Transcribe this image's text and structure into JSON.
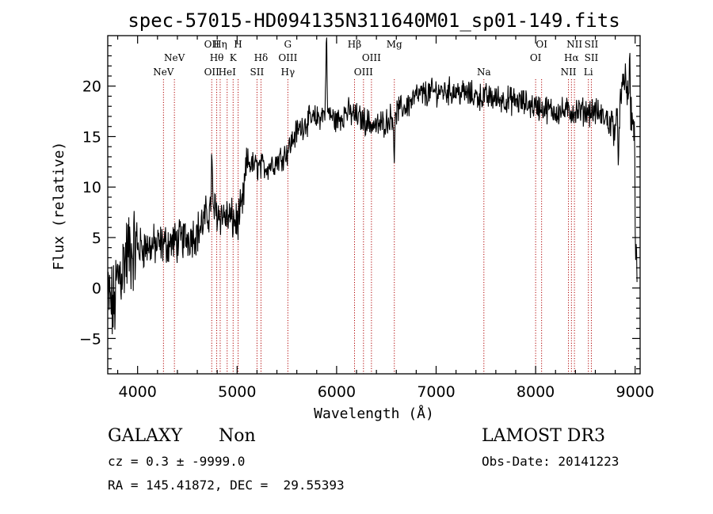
{
  "chart_data": {
    "type": "line",
    "title": "spec-57015-HD094135N311640M01_sp01-149.fits",
    "xlabel": "Wavelength (Å)",
    "ylabel": "Flux (relative)",
    "xlim": [
      3700,
      9050
    ],
    "ylim": [
      -8.5,
      25
    ],
    "xticks": [
      4000,
      5000,
      6000,
      7000,
      8000,
      9000
    ],
    "yticks": [
      -5,
      0,
      5,
      10,
      15,
      20
    ],
    "spectrum_anchors": {
      "x": [
        3700,
        3760,
        3800,
        3900,
        4000,
        4200,
        4400,
        4600,
        4700,
        4750,
        4800,
        4900,
        5000,
        5050,
        5100,
        5200,
        5300,
        5400,
        5500,
        5550,
        5600,
        5700,
        5800,
        5900,
        6000,
        6100,
        6200,
        6300,
        6400,
        6500,
        6600,
        6700,
        6800,
        7000,
        7200,
        7400,
        7600,
        7800,
        8000,
        8200,
        8400,
        8600,
        8800,
        8850,
        8900,
        8950,
        9000,
        9020
      ],
      "y": [
        -1,
        -2,
        1,
        3.5,
        4.0,
        4.2,
        4.6,
        5.5,
        7.2,
        8.0,
        7.5,
        7.0,
        6.5,
        7.8,
        12.5,
        12.0,
        12.0,
        12.6,
        13.5,
        14.5,
        15.5,
        16.5,
        16.8,
        17.5,
        16.5,
        17.5,
        17.0,
        16.5,
        16.0,
        16.5,
        17.5,
        18.0,
        19.0,
        19.5,
        19.5,
        19.0,
        18.8,
        18.5,
        18.0,
        17.5,
        17.5,
        17.5,
        16.0,
        18.0,
        21.0,
        17.0,
        16.0,
        1.0
      ]
    },
    "spectrum_features": [
      {
        "x": 5897,
        "y": 26
      },
      {
        "x": 4745,
        "y": 13
      },
      {
        "x": 6580,
        "y": 12.5
      },
      {
        "x": 8945,
        "y": 23.5
      },
      {
        "x": 8830,
        "y": 12.5
      },
      {
        "x": 9005,
        "y": 0.5
      }
    ],
    "line_markers": [
      {
        "x": 4260,
        "labels": [
          "",
          "",
          "NeV"
        ]
      },
      {
        "x": 4370,
        "labels": [
          "",
          "NeV",
          ""
        ]
      },
      {
        "x": 4745,
        "labels": [
          "OII",
          "",
          "OII"
        ]
      },
      {
        "x": 4795,
        "labels": [
          "",
          "Hθ",
          ""
        ]
      },
      {
        "x": 4830,
        "labels": [
          "Hη",
          "",
          ""
        ]
      },
      {
        "x": 4900,
        "labels": [
          "",
          "",
          "HeI"
        ]
      },
      {
        "x": 4960,
        "labels": [
          "",
          "K",
          ""
        ]
      },
      {
        "x": 5010,
        "labels": [
          "H",
          "",
          ""
        ]
      },
      {
        "x": 5200,
        "labels": [
          "",
          "",
          "SII"
        ]
      },
      {
        "x": 5240,
        "labels": [
          "",
          "Hδ",
          ""
        ]
      },
      {
        "x": 5510,
        "labels": [
          "G",
          "OIII",
          "Hγ"
        ]
      },
      {
        "x": 6180,
        "labels": [
          "Hβ",
          "",
          ""
        ]
      },
      {
        "x": 6270,
        "labels": [
          "",
          "",
          "OIII"
        ]
      },
      {
        "x": 6350,
        "labels": [
          "",
          "OIII",
          ""
        ]
      },
      {
        "x": 6580,
        "labels": [
          "Mg",
          "",
          ""
        ]
      },
      {
        "x": 7480,
        "labels": [
          "",
          "",
          "Na"
        ]
      },
      {
        "x": 8000,
        "labels": [
          "",
          "OI",
          ""
        ]
      },
      {
        "x": 8060,
        "labels": [
          "OI",
          "",
          ""
        ]
      },
      {
        "x": 8330,
        "labels": [
          "",
          "",
          "NII"
        ]
      },
      {
        "x": 8360,
        "labels": [
          "",
          "Hα",
          ""
        ]
      },
      {
        "x": 8390,
        "labels": [
          "NII",
          "",
          ""
        ]
      },
      {
        "x": 8530,
        "labels": [
          "",
          "",
          "Li"
        ]
      },
      {
        "x": 8560,
        "labels": [
          "SII",
          "SII",
          ""
        ]
      }
    ]
  },
  "info": {
    "class": "GALAXY",
    "subclass": "Non",
    "survey": "LAMOST DR3",
    "cz": "cz = 0.3 ± -9999.0",
    "obs_date": "Obs-Date: 20141223",
    "coords": "RA = 145.41872, DEC =  29.55393"
  },
  "colors": {
    "spectrum": "#000000",
    "marker": "#b00000",
    "axis": "#000000"
  }
}
